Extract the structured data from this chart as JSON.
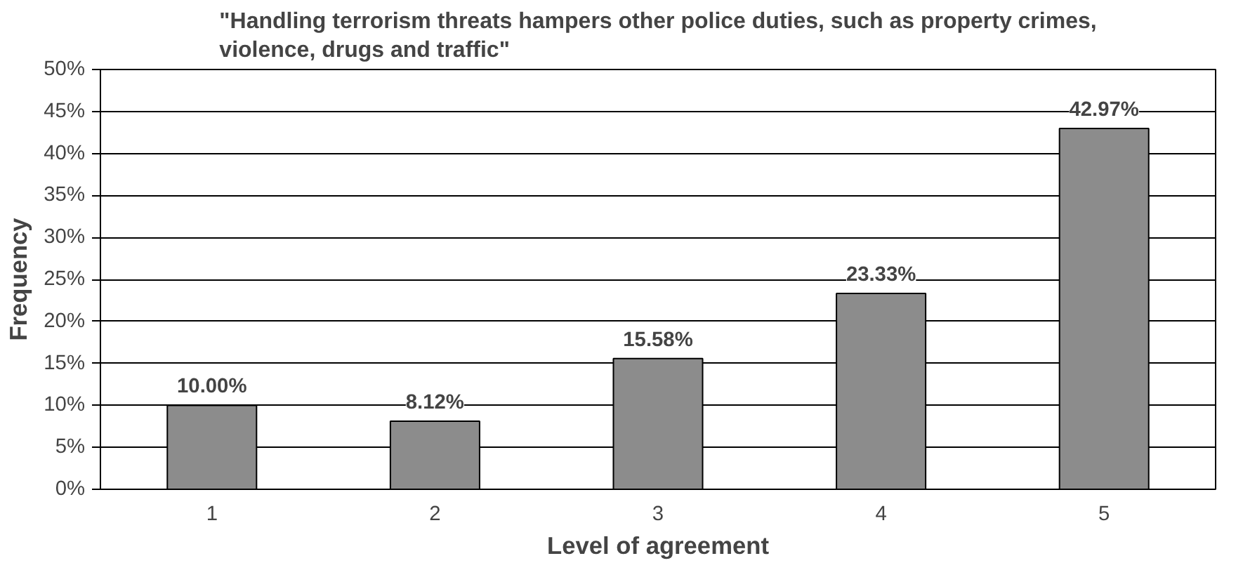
{
  "chart_data": {
    "type": "bar",
    "title": "\"Handling terrorism threats hampers other police duties, such as property crimes, violence, drugs and traffic\"",
    "xlabel": "Level of agreement",
    "ylabel": "Frequency",
    "categories": [
      "1",
      "2",
      "3",
      "4",
      "5"
    ],
    "values": [
      10.0,
      8.12,
      15.58,
      23.33,
      42.97
    ],
    "value_labels": [
      "10.00%",
      "8.12%",
      "15.58%",
      "23.33%",
      "42.97%"
    ],
    "color": "#8c8c8c",
    "ylim": [
      0,
      50
    ],
    "yticks": [
      {
        "value": 0,
        "label": "0%"
      },
      {
        "value": 5,
        "label": "5%"
      },
      {
        "value": 10,
        "label": "10%"
      },
      {
        "value": 15,
        "label": "15%"
      },
      {
        "value": 20,
        "label": "20%"
      },
      {
        "value": 25,
        "label": "25%"
      },
      {
        "value": 30,
        "label": "30%"
      },
      {
        "value": 35,
        "label": "35%"
      },
      {
        "value": 40,
        "label": "40%"
      },
      {
        "value": 45,
        "label": "45%"
      },
      {
        "value": 50,
        "label": "50%"
      }
    ],
    "grid": "y"
  }
}
